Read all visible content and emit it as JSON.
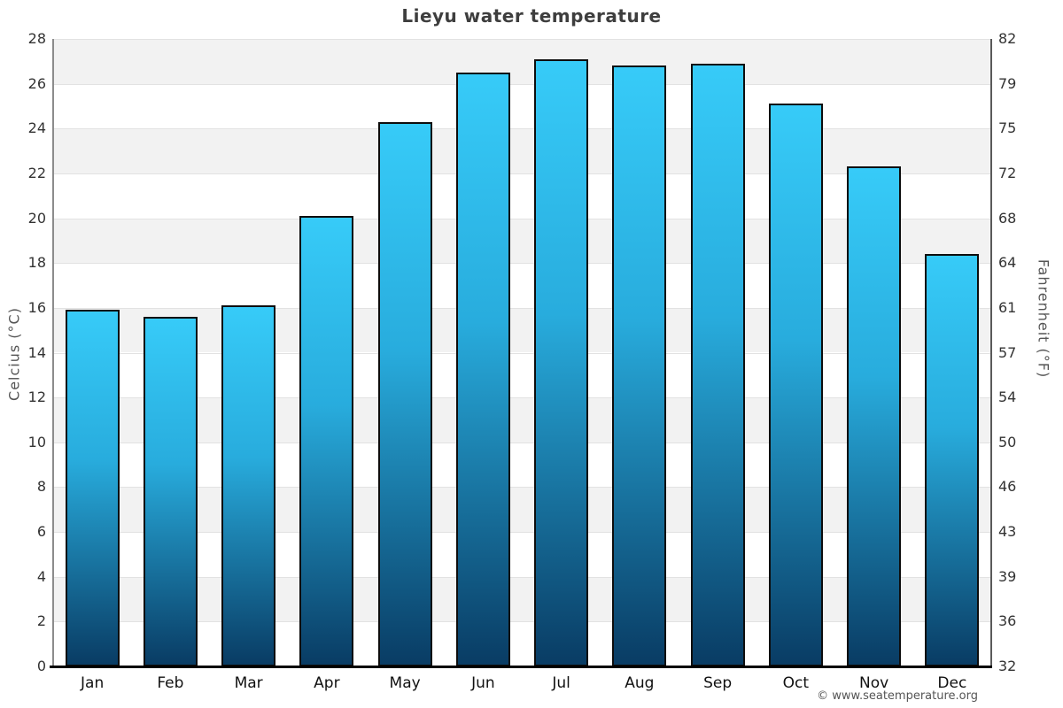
{
  "chart_data": {
    "type": "bar",
    "title": "Lieyu water temperature",
    "categories": [
      "Jan",
      "Feb",
      "Mar",
      "Apr",
      "May",
      "Jun",
      "Jul",
      "Aug",
      "Sep",
      "Oct",
      "Nov",
      "Dec"
    ],
    "values": [
      15.9,
      15.6,
      16.1,
      20.1,
      24.3,
      26.5,
      27.1,
      26.8,
      26.9,
      25.1,
      22.3,
      18.4
    ],
    "ylabel_left": "Celcius (°C)",
    "ylabel_right": "Fahrenheit (°F)",
    "ylim": [
      0,
      28
    ],
    "yticks_celsius": [
      0,
      2,
      4,
      6,
      8,
      10,
      12,
      14,
      16,
      18,
      20,
      22,
      24,
      26,
      28
    ],
    "yticks_fahrenheit_top_to_bottom": [
      "82",
      "79",
      "75",
      "72",
      "68",
      "64",
      "61",
      "57",
      "54",
      "50",
      "46",
      "43",
      "39",
      "36",
      "32"
    ],
    "grid": "horizontal lines every 2°C with alternating gray/white bands",
    "legend": "none",
    "bar_style": "vertical blue gradient, black outline"
  },
  "colors": {
    "bar_top": "#37cbf8",
    "bar_mid": "#28acdd",
    "bar_bottom": "#093c64",
    "bar_border": "#0d0d0d",
    "band_gray": "#f2f2f2",
    "band_white": "#ffffff",
    "gridline": "#e2e2e2",
    "axis_line_left": "#8c8c8c",
    "axis_line_right": "#5a5a5a",
    "axis_line_bottom": "#000000",
    "title_text": "#3e3e3e",
    "tick_text": "#333333",
    "month_text": "#111111",
    "axis_title_text": "#555555",
    "copyright_text": "#555555"
  },
  "footer": {
    "copyright": "© www.seatemperature.org"
  }
}
